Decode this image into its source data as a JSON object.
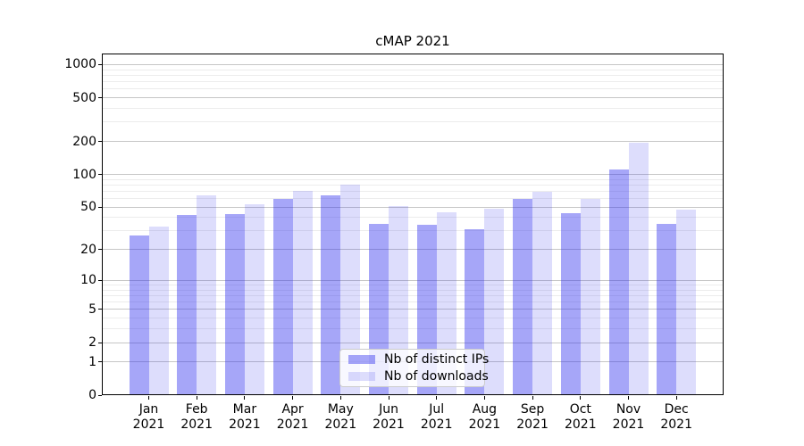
{
  "chart_data": {
    "type": "bar",
    "title": "cMAP 2021",
    "categories": [
      "Jan",
      "Feb",
      "Mar",
      "Apr",
      "May",
      "Jun",
      "Jul",
      "Aug",
      "Sep",
      "Oct",
      "Nov",
      "Dec"
    ],
    "category_year": "2021",
    "series": [
      {
        "name": "Nb of distinct IPs",
        "color": "rgba(43,43,238,0.42)",
        "values": [
          27,
          42,
          43,
          59,
          64,
          35,
          34,
          31,
          60,
          44,
          110,
          35
        ]
      },
      {
        "name": "Nb of downloads",
        "color": "rgba(43,43,238,0.16)",
        "values": [
          33,
          64,
          53,
          70,
          80,
          51,
          45,
          48,
          69,
          60,
          195,
          47
        ]
      }
    ],
    "xlabel": "",
    "ylabel": "",
    "yscale": "log1p",
    "ylim": [
      0,
      1260
    ],
    "y_major_ticks": [
      0,
      1,
      2,
      5,
      10,
      20,
      50,
      100,
      200,
      500,
      1000
    ],
    "y_minor_ticks": [
      3,
      4,
      6,
      7,
      8,
      9,
      30,
      40,
      60,
      70,
      80,
      90,
      300,
      400,
      600,
      700,
      800,
      900
    ],
    "grid": true,
    "grid_major_color": "#c6c6c6",
    "grid_minor_color": "#ececec",
    "legend_position": "lower center inside",
    "legend_entries": [
      "Nb of distinct IPs",
      "Nb of downloads"
    ]
  }
}
